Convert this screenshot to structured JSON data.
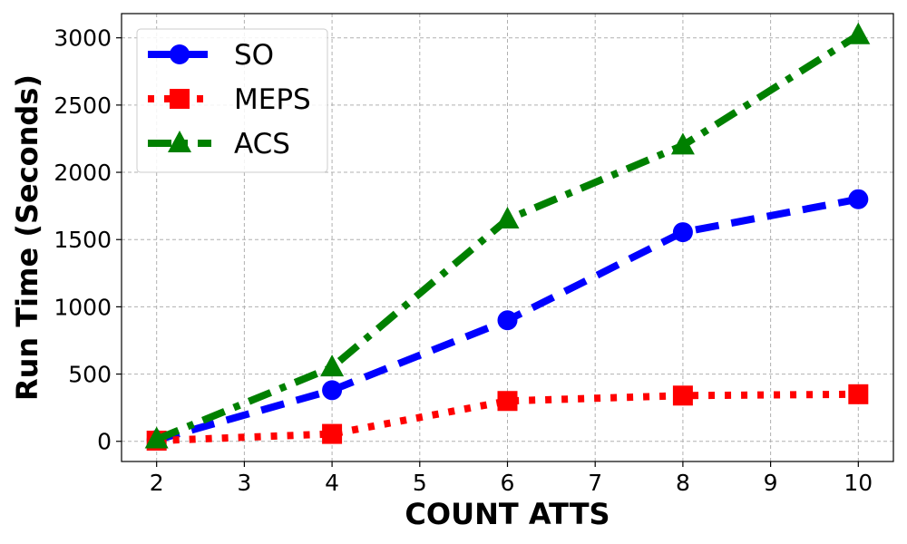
{
  "chart_data": {
    "type": "line",
    "xlabel": "COUNT ATTS",
    "ylabel": "Run Time (Seconds)",
    "x": [
      2,
      4,
      6,
      8,
      10
    ],
    "xlim": [
      1.6,
      10.4
    ],
    "ylim": [
      -150,
      3180
    ],
    "xticks": [
      "2",
      "3",
      "4",
      "5",
      "6",
      "7",
      "8",
      "9",
      "10"
    ],
    "yticks": [
      "0",
      "500",
      "1000",
      "1500",
      "2000",
      "2500",
      "3000"
    ],
    "grid": true,
    "legend_position": "top-left",
    "series": [
      {
        "name": "SO",
        "values": [
          10,
          380,
          900,
          1555,
          1800
        ],
        "color": "#0000ff",
        "marker": "circle",
        "linestyle": "dashed"
      },
      {
        "name": "MEPS",
        "values": [
          5,
          55,
          300,
          340,
          350
        ],
        "color": "#ff0000",
        "marker": "square",
        "linestyle": "dotted"
      },
      {
        "name": "ACS",
        "values": [
          15,
          550,
          1650,
          2200,
          3020
        ],
        "color": "#008000",
        "marker": "triangle",
        "linestyle": "dashdot"
      }
    ]
  }
}
